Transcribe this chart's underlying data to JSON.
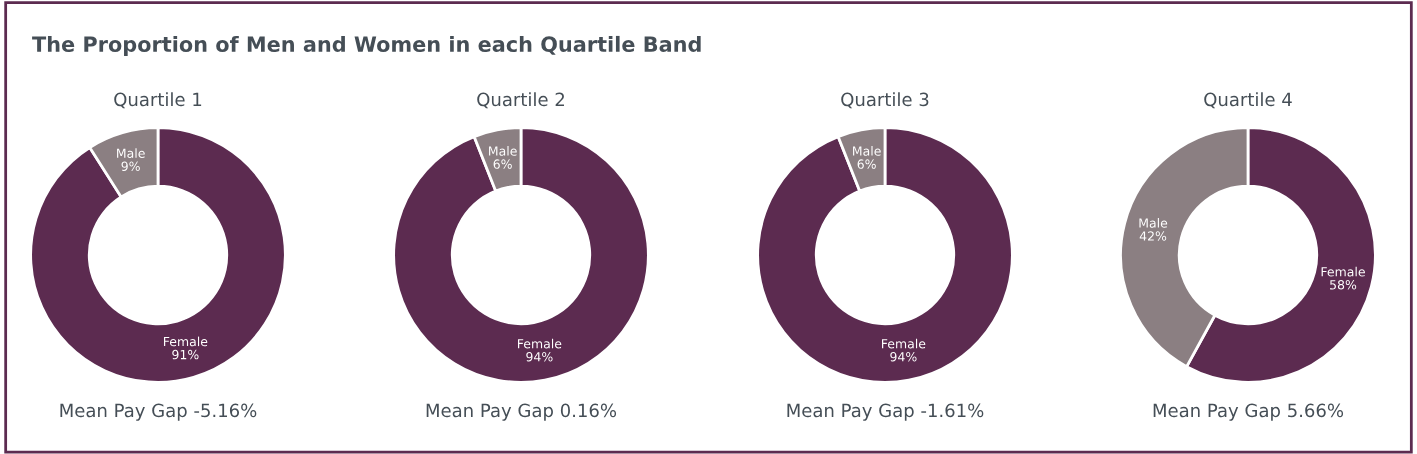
{
  "chart_data": [
    {
      "type": "other",
      "title": "The Proportion of Men and Women in each Quartile Band"
    },
    {
      "type": "donut",
      "title": "Quartile 1",
      "categories": [
        "Female",
        "Male"
      ],
      "values": [
        91,
        9
      ],
      "colors": [
        "#5c2b50",
        "#8b7f82"
      ],
      "value_labels": [
        "91%",
        "9%"
      ],
      "annotations": [
        "Mean Pay Gap -5.16%"
      ]
    },
    {
      "type": "donut",
      "title": "Quartile 2",
      "categories": [
        "Female",
        "Male"
      ],
      "values": [
        94,
        6
      ],
      "colors": [
        "#5c2b50",
        "#8b7f82"
      ],
      "value_labels": [
        "94%",
        "6%"
      ],
      "annotations": [
        "Mean Pay Gap 0.16%"
      ]
    },
    {
      "type": "donut",
      "title": "Quartile 3",
      "categories": [
        "Female",
        "Male"
      ],
      "values": [
        94,
        6
      ],
      "colors": [
        "#5c2b50",
        "#8b7f82"
      ],
      "value_labels": [
        "94%",
        "6%"
      ],
      "annotations": [
        "Mean Pay Gap -1.61%"
      ]
    },
    {
      "type": "donut",
      "title": "Quartile 4",
      "categories": [
        "Female",
        "Male"
      ],
      "values": [
        58,
        42
      ],
      "colors": [
        "#5c2b50",
        "#8b7f82"
      ],
      "value_labels": [
        "58%",
        "42%"
      ],
      "annotations": [
        "Mean Pay Gap 5.66%"
      ]
    }
  ]
}
